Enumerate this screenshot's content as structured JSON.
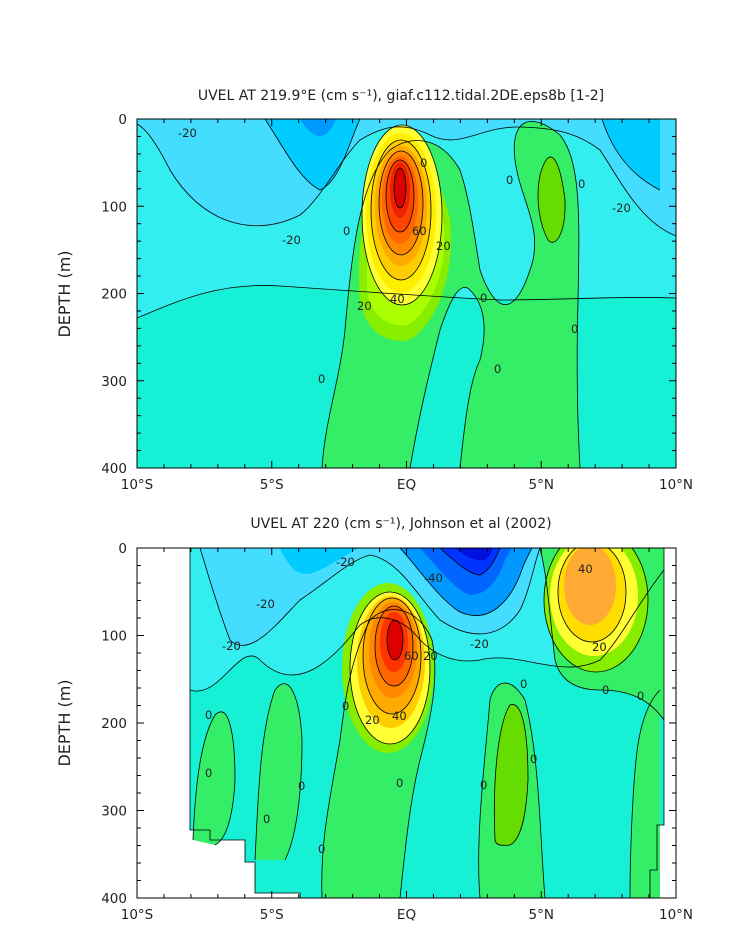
{
  "chart_data": [
    {
      "type": "contour",
      "title": "UVEL AT 219.9°E (cm s⁻¹), giaf.c112.tidal.2DE.eps8b [1-2]",
      "ylabel": "DEPTH (m)",
      "xlabel": "",
      "x_ticks": [
        "10°S",
        "5°S",
        "EQ",
        "5°N",
        "10°N"
      ],
      "x_tick_values": [
        -10,
        -5,
        0,
        5,
        10
      ],
      "y_ticks": [
        "0",
        "100",
        "200",
        "300",
        "400"
      ],
      "y_tick_values": [
        0,
        100,
        200,
        300,
        400
      ],
      "xlim": [
        -10,
        10
      ],
      "ylim": [
        400,
        0
      ],
      "contour_interval": 5,
      "contour_labels": [
        "-20",
        "-20",
        "-20",
        "0",
        "0",
        "0",
        "0",
        "0",
        "0",
        "0",
        "20",
        "20",
        "40",
        "60"
      ],
      "features": [
        {
          "kind": "max",
          "lon": 0.0,
          "depth": 130,
          "value": 65
        },
        {
          "kind": "min",
          "lon": -3.5,
          "depth": 25,
          "value": -30
        },
        {
          "kind": "min",
          "lon": 9.0,
          "depth": 40,
          "value": -25
        },
        {
          "kind": "max",
          "lon": 5.7,
          "depth": 110,
          "value": 12
        }
      ]
    },
    {
      "type": "contour",
      "title": "UVEL AT 220 (cm s⁻¹), Johnson et al (2002)",
      "ylabel": "DEPTH (m)",
      "xlabel": "",
      "x_ticks": [
        "10°S",
        "5°S",
        "EQ",
        "5°N",
        "10°N"
      ],
      "x_tick_values": [
        -10,
        -5,
        0,
        5,
        10
      ],
      "y_ticks": [
        "0",
        "100",
        "200",
        "300",
        "400"
      ],
      "y_tick_values": [
        0,
        100,
        200,
        300,
        400
      ],
      "xlim": [
        -10,
        10
      ],
      "ylim": [
        400,
        0
      ],
      "contour_interval": 5,
      "contour_labels": [
        "-20",
        "-20",
        "-20",
        "-20",
        "-40",
        "0",
        "0",
        "0",
        "0",
        "0",
        "0",
        "0",
        "0",
        "0",
        "0",
        "0",
        "0",
        "20",
        "20",
        "20",
        "40",
        "40",
        "60"
      ],
      "features": [
        {
          "kind": "max",
          "lon": -0.1,
          "depth": 115,
          "value": 70
        },
        {
          "kind": "min",
          "lon": 2.5,
          "depth": 20,
          "value": -55
        },
        {
          "kind": "max",
          "lon": 7.0,
          "depth": 50,
          "value": 45
        },
        {
          "kind": "max",
          "lon": 4.7,
          "depth": 230,
          "value": 10
        },
        {
          "kind": "min",
          "lon": -3.5,
          "depth": 35,
          "value": -30
        }
      ]
    }
  ]
}
